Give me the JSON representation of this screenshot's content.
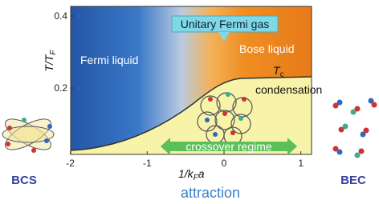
{
  "title_box": "Unitary Fermi gas",
  "regions": {
    "fermi_liquid": "Fermi liquid",
    "bose_liquid": "Bose liquid",
    "condensation": "condensation",
    "crossover": "crossover regime"
  },
  "tc_label": {
    "main": "T",
    "sub": "c"
  },
  "y_axis": {
    "label": {
      "main": "T/T",
      "sub": "F"
    },
    "ticks": [
      0.2,
      0.4
    ]
  },
  "x_axis": {
    "label": {
      "pre": "1/k",
      "sub": "F",
      "post": "a"
    },
    "ticks": [
      -2,
      -1,
      0,
      1
    ]
  },
  "bottom_label": "attraction",
  "left_label": "BCS",
  "right_label": "BEC"
}
